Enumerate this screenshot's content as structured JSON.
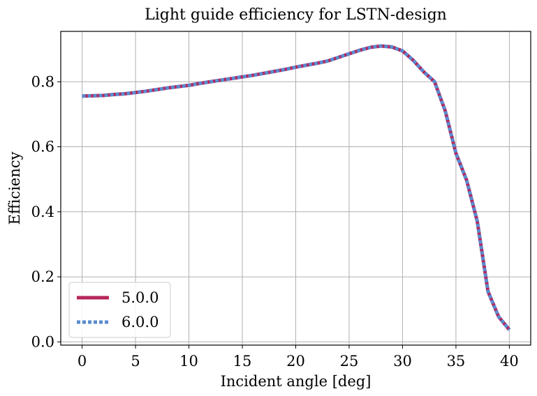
{
  "chart_data": {
    "type": "line",
    "title": "Light guide efficiency for LSTN-design",
    "xlabel": "Incident angle [deg]",
    "ylabel": "Efficiency",
    "xlim": [
      -2,
      42
    ],
    "ylim": [
      -0.01,
      0.955
    ],
    "xticks": [
      0,
      5,
      10,
      15,
      20,
      25,
      30,
      35,
      40
    ],
    "yticks": [
      0.0,
      0.2,
      0.4,
      0.6,
      0.8
    ],
    "xtick_labels": [
      "0",
      "5",
      "10",
      "15",
      "20",
      "25",
      "30",
      "35",
      "40"
    ],
    "ytick_labels": [
      "0.0",
      "0.2",
      "0.4",
      "0.6",
      "0.8"
    ],
    "grid": true,
    "legend_position": "lower-left",
    "x": [
      0,
      1,
      2,
      3,
      4,
      5,
      6,
      7,
      8,
      9,
      10,
      11,
      12,
      13,
      14,
      15,
      16,
      17,
      18,
      19,
      20,
      21,
      22,
      23,
      24,
      25,
      26,
      27,
      28,
      29,
      30,
      31,
      32,
      33,
      34,
      35,
      36,
      37,
      38,
      39,
      40
    ],
    "series": [
      {
        "name": "5.0.0",
        "color": "#b5265a",
        "style": "solid",
        "values": [
          0.756,
          0.757,
          0.758,
          0.761,
          0.763,
          0.767,
          0.771,
          0.776,
          0.781,
          0.785,
          0.789,
          0.795,
          0.8,
          0.805,
          0.81,
          0.815,
          0.82,
          0.826,
          0.832,
          0.838,
          0.845,
          0.851,
          0.857,
          0.864,
          0.875,
          0.886,
          0.897,
          0.906,
          0.91,
          0.907,
          0.895,
          0.866,
          0.83,
          0.8,
          0.71,
          0.58,
          0.497,
          0.37,
          0.155,
          0.077,
          0.037
        ]
      },
      {
        "name": "6.0.0",
        "color": "#5b8bd0",
        "style": "dotted",
        "values": [
          0.756,
          0.757,
          0.758,
          0.761,
          0.763,
          0.767,
          0.771,
          0.776,
          0.781,
          0.785,
          0.789,
          0.795,
          0.8,
          0.805,
          0.81,
          0.815,
          0.82,
          0.826,
          0.832,
          0.838,
          0.845,
          0.851,
          0.857,
          0.864,
          0.875,
          0.886,
          0.897,
          0.906,
          0.91,
          0.907,
          0.895,
          0.866,
          0.83,
          0.8,
          0.71,
          0.58,
          0.497,
          0.37,
          0.155,
          0.077,
          0.037
        ]
      }
    ]
  }
}
